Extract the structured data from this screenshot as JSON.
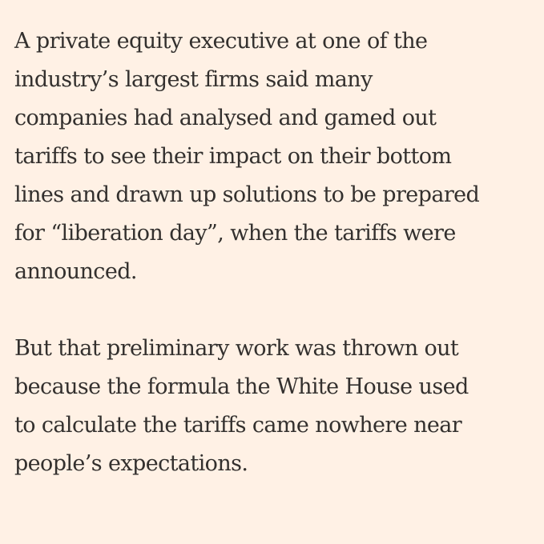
{
  "article": {
    "background_color": "#FFF1E5",
    "text_color": "#33302E",
    "paragraphs": [
      {
        "lines": [
          "A private equity executive at one of the",
          "industry’s largest firms said many",
          "companies had analysed and gamed out",
          "tariffs to see their impact on their bottom",
          "lines and drawn up solutions to be prepared",
          "for “liberation day”, when the tariffs were",
          "announced."
        ]
      },
      {
        "lines": [
          "But that preliminary work was thrown out",
          "because the formula the White House used",
          "to calculate the tariffs came nowhere near",
          "people’s expectations."
        ]
      }
    ]
  }
}
